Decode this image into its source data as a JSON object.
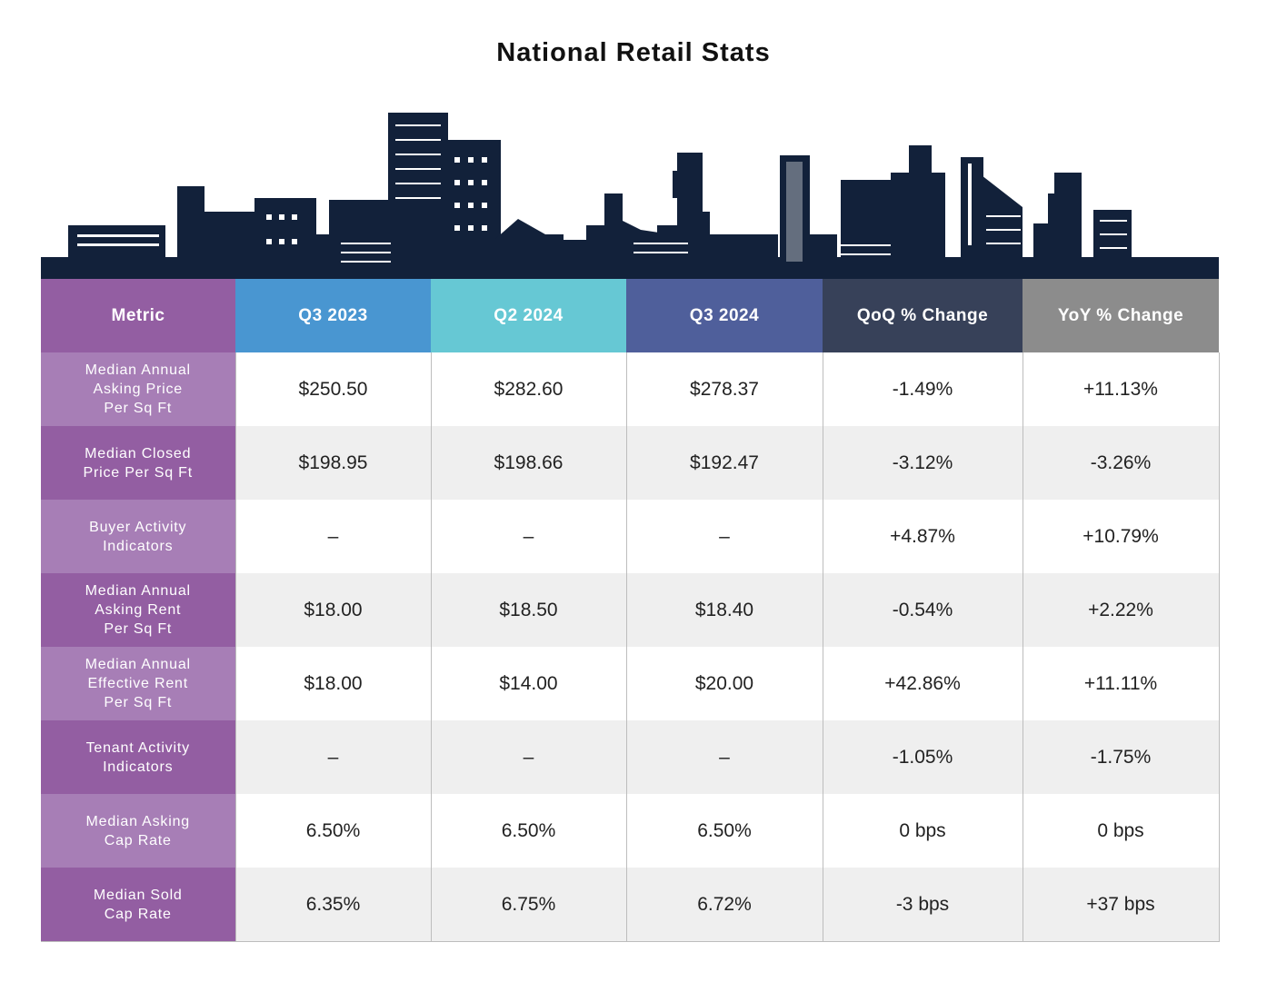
{
  "title": "National Retail Stats",
  "colors": {
    "skyline": "#12213a",
    "metric_header": "#935ea2",
    "q3_2023": "#4996d1",
    "q2_2024": "#66c8d4",
    "q3_2024": "#4f5f9b",
    "qoq": "#374159",
    "yoy": "#8c8c8c"
  },
  "headers": [
    "Metric",
    "Q3 2023",
    "Q2 2024",
    "Q3 2024",
    "QoQ % Change",
    "YoY % Change"
  ],
  "rows": [
    {
      "metric": "Median Annual\nAsking Price\nPer Sq Ft",
      "values": [
        "$250.50",
        "$282.60",
        "$278.37",
        "-1.49%",
        "+11.13%"
      ]
    },
    {
      "metric": "Median Closed\nPrice Per Sq Ft",
      "values": [
        "$198.95",
        "$198.66",
        "$192.47",
        "-3.12%",
        "-3.26%"
      ]
    },
    {
      "metric": "Buyer Activity\nIndicators",
      "values": [
        "–",
        "–",
        "–",
        "+4.87%",
        "+10.79%"
      ]
    },
    {
      "metric": "Median Annual\nAsking Rent\nPer Sq Ft",
      "values": [
        "$18.00",
        "$18.50",
        "$18.40",
        "-0.54%",
        "+2.22%"
      ]
    },
    {
      "metric": "Median Annual\nEffective Rent\nPer Sq Ft",
      "values": [
        "$18.00",
        "$14.00",
        "$20.00",
        "+42.86%",
        "+11.11%"
      ]
    },
    {
      "metric": "Tenant Activity\nIndicators",
      "values": [
        "–",
        "–",
        "–",
        "-1.05%",
        "-1.75%"
      ]
    },
    {
      "metric": "Median Asking\nCap Rate",
      "values": [
        "6.50%",
        "6.50%",
        "6.50%",
        "0 bps",
        "0 bps"
      ]
    },
    {
      "metric": "Median Sold\nCap Rate",
      "values": [
        "6.35%",
        "6.75%",
        "6.72%",
        "-3 bps",
        "+37 bps"
      ]
    }
  ]
}
